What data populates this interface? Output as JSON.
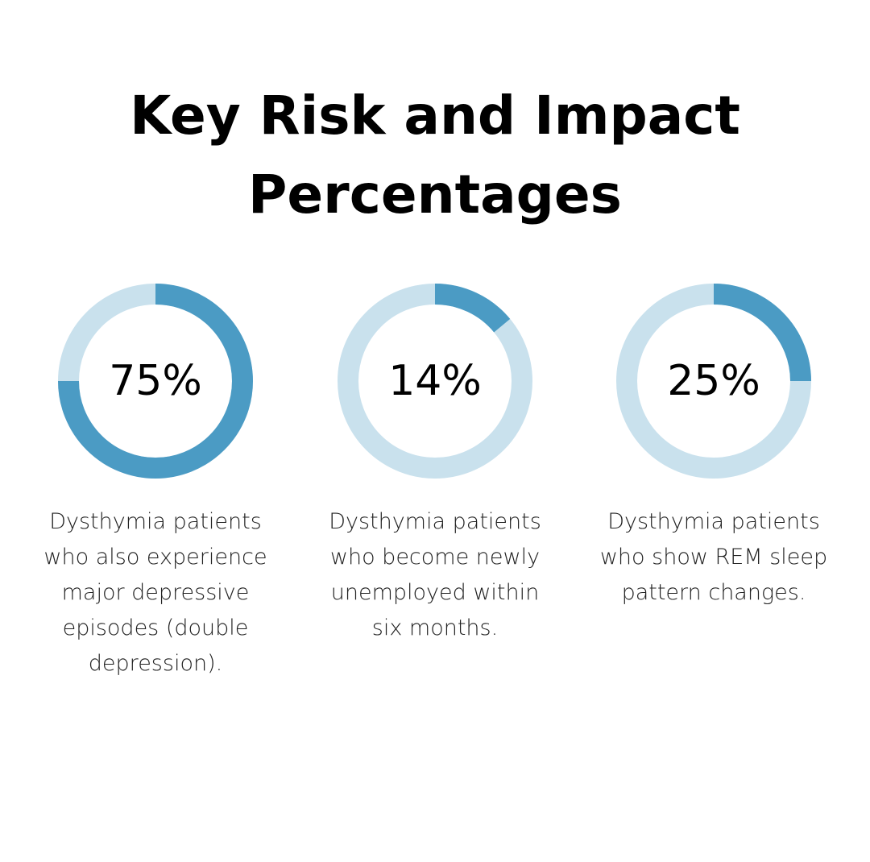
{
  "title_lines": [
    "Key Risk and Impact",
    "Percentages"
  ],
  "colors": {
    "arc_fill": "#4b9bc4",
    "arc_track": "#c9e1ed"
  },
  "chart_data": [
    {
      "type": "pie",
      "value": 75,
      "label": "75%",
      "description": "Dysthymia patients who also experience major depressive episodes (double depression)."
    },
    {
      "type": "pie",
      "value": 14,
      "label": "14%",
      "description": "Dysthymia patients who become newly unemployed within six months."
    },
    {
      "type": "pie",
      "value": 25,
      "label": "25%",
      "description": "Dysthymia patients who show REM sleep pattern changes."
    }
  ]
}
